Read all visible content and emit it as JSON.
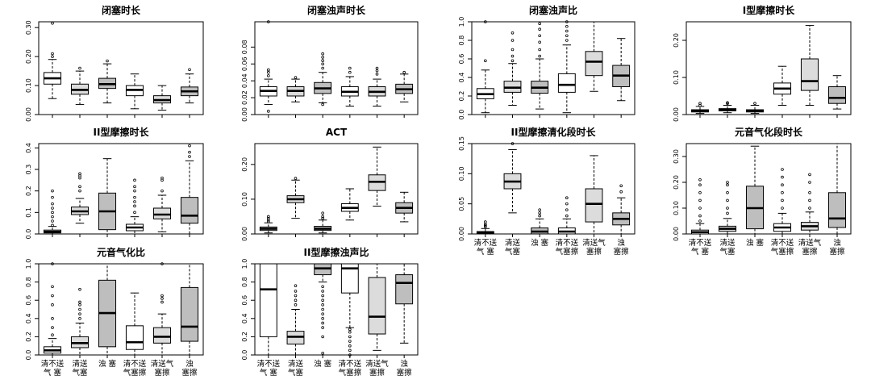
{
  "figure": {
    "category_labels": [
      [
        "清不送",
        "气 塞"
      ],
      [
        "清送",
        "气塞"
      ],
      [
        "浊 塞"
      ],
      [
        "清不送",
        "气塞擦"
      ],
      [
        "清送气",
        "塞擦"
      ],
      [
        "浊",
        "塞擦"
      ]
    ]
  },
  "colors": {
    "white_box": "#ffffff",
    "light_box": "#dcdcdc",
    "dark_box": "#bebebe",
    "axis": "#000000"
  },
  "chart_data": [
    {
      "type": "box",
      "title": "闭塞时长",
      "categories": [
        "清不送气塞",
        "清送气塞",
        "浊塞",
        "清不送气塞擦",
        "清送气塞擦",
        "浊塞擦"
      ],
      "ylim": [
        0,
        0.32
      ],
      "ticks": [
        "0.00",
        "0.10",
        "0.20",
        "0.30"
      ],
      "grid": false,
      "boxes": [
        {
          "whislo": 0.055,
          "q1": 0.105,
          "med": 0.125,
          "q3": 0.145,
          "whishi": 0.19,
          "outliers": [
            0.2,
            0.21,
            0.315
          ],
          "fill": "white"
        },
        {
          "whislo": 0.035,
          "q1": 0.07,
          "med": 0.085,
          "q3": 0.105,
          "whishi": 0.15,
          "outliers": [
            0.16
          ],
          "fill": "light"
        },
        {
          "whislo": 0.04,
          "q1": 0.09,
          "med": 0.105,
          "q3": 0.125,
          "whishi": 0.175,
          "outliers": [
            0.185
          ],
          "fill": "dark"
        },
        {
          "whislo": 0.02,
          "q1": 0.065,
          "med": 0.085,
          "q3": 0.1,
          "whishi": 0.14,
          "outliers": [],
          "fill": "white"
        },
        {
          "whislo": 0.015,
          "q1": 0.04,
          "med": 0.05,
          "q3": 0.065,
          "whishi": 0.1,
          "outliers": [],
          "fill": "light"
        },
        {
          "whislo": 0.04,
          "q1": 0.065,
          "med": 0.08,
          "q3": 0.095,
          "whishi": 0.14,
          "outliers": [
            0.155
          ],
          "fill": "dark"
        }
      ]
    },
    {
      "type": "box",
      "title": "闭塞浊声时长",
      "categories": [
        "清不送气塞",
        "清送气塞",
        "浊塞",
        "清不送气塞擦",
        "清送气塞擦",
        "浊塞擦"
      ],
      "ylim": [
        0,
        0.11
      ],
      "ticks": [
        "0.00",
        "0.02",
        "0.04",
        "0.06",
        "0.08"
      ],
      "grid": false,
      "boxes": [
        {
          "whislo": 0.012,
          "q1": 0.022,
          "med": 0.028,
          "q3": 0.033,
          "whishi": 0.042,
          "outliers": [
            0.004,
            0.046,
            0.05,
            0.053,
            0.11
          ],
          "fill": "white"
        },
        {
          "whislo": 0.015,
          "q1": 0.022,
          "med": 0.028,
          "q3": 0.033,
          "whishi": 0.042,
          "outliers": [
            0.044
          ],
          "fill": "light"
        },
        {
          "whislo": 0.014,
          "q1": 0.025,
          "med": 0.031,
          "q3": 0.038,
          "whishi": 0.05,
          "outliers": [
            0.012,
            0.055,
            0.06,
            0.064,
            0.068,
            0.072
          ],
          "fill": "dark"
        },
        {
          "whislo": 0.01,
          "q1": 0.022,
          "med": 0.027,
          "q3": 0.033,
          "whishi": 0.045,
          "outliers": [
            0.05,
            0.055
          ],
          "fill": "white"
        },
        {
          "whislo": 0.01,
          "q1": 0.022,
          "med": 0.027,
          "q3": 0.033,
          "whishi": 0.042,
          "outliers": [
            0.048,
            0.052,
            0.055
          ],
          "fill": "light"
        },
        {
          "whislo": 0.015,
          "q1": 0.025,
          "med": 0.03,
          "q3": 0.036,
          "whishi": 0.048,
          "outliers": [
            0.05
          ],
          "fill": "dark"
        }
      ]
    },
    {
      "type": "box",
      "title": "闭塞浊声比",
      "categories": [
        "清不送气塞",
        "清送气塞",
        "浊塞",
        "清不送气塞擦",
        "清送气塞擦",
        "浊塞擦"
      ],
      "ylim": [
        0,
        1.0
      ],
      "ticks": [
        "0.0",
        "0.2",
        "0.4",
        "0.6",
        "0.8",
        "1.0"
      ],
      "grid": false,
      "boxes": [
        {
          "whislo": 0.02,
          "q1": 0.17,
          "med": 0.22,
          "q3": 0.28,
          "whishi": 0.48,
          "outliers": [
            0.58,
            1.0
          ],
          "fill": "white"
        },
        {
          "whislo": 0.1,
          "q1": 0.24,
          "med": 0.29,
          "q3": 0.36,
          "whishi": 0.55,
          "outliers": [
            0.58,
            0.63,
            0.7,
            0.8,
            0.88
          ],
          "fill": "light"
        },
        {
          "whislo": 0.06,
          "q1": 0.23,
          "med": 0.29,
          "q3": 0.36,
          "whishi": 0.6,
          "outliers": [
            0.63,
            0.7,
            0.78,
            0.85,
            0.92,
            0.98
          ],
          "fill": "dark"
        },
        {
          "whislo": 0.02,
          "q1": 0.24,
          "med": 0.32,
          "q3": 0.44,
          "whishi": 0.75,
          "outliers": [
            0.8,
            0.85,
            0.9,
            0.95,
            1.0
          ],
          "fill": "white"
        },
        {
          "whislo": 0.25,
          "q1": 0.42,
          "med": 0.57,
          "q3": 0.68,
          "whishi": 1.0,
          "outliers": [],
          "fill": "light"
        },
        {
          "whislo": 0.15,
          "q1": 0.3,
          "med": 0.42,
          "q3": 0.53,
          "whishi": 0.82,
          "outliers": [],
          "fill": "dark"
        }
      ]
    },
    {
      "type": "box",
      "title": "I型摩擦时长",
      "categories": [
        "清不送气塞",
        "清送气塞",
        "浊塞",
        "清不送气塞擦",
        "清送气塞擦",
        "浊塞擦"
      ],
      "ylim": [
        0,
        0.25
      ],
      "ticks": [
        "0.00",
        "0.10",
        "0.20"
      ],
      "grid": false,
      "boxes": [
        {
          "whislo": 0.003,
          "q1": 0.007,
          "med": 0.01,
          "q3": 0.013,
          "whishi": 0.022,
          "outliers": [
            0.025,
            0.03
          ],
          "fill": "white"
        },
        {
          "whislo": 0.005,
          "q1": 0.01,
          "med": 0.013,
          "q3": 0.016,
          "whishi": 0.025,
          "outliers": [
            0.03,
            0.032
          ],
          "fill": "light"
        },
        {
          "whislo": 0.003,
          "q1": 0.007,
          "med": 0.01,
          "q3": 0.013,
          "whishi": 0.025,
          "outliers": [
            0.03
          ],
          "fill": "dark"
        },
        {
          "whislo": 0.025,
          "q1": 0.055,
          "med": 0.07,
          "q3": 0.085,
          "whishi": 0.13,
          "outliers": [],
          "fill": "white"
        },
        {
          "whislo": 0.025,
          "q1": 0.065,
          "med": 0.09,
          "q3": 0.15,
          "whishi": 0.24,
          "outliers": [],
          "fill": "light"
        },
        {
          "whislo": 0.015,
          "q1": 0.03,
          "med": 0.045,
          "q3": 0.075,
          "whishi": 0.105,
          "outliers": [],
          "fill": "dark"
        }
      ]
    },
    {
      "type": "box",
      "title": "II型摩擦时长",
      "categories": [
        "清不送气塞",
        "清送气塞",
        "浊塞",
        "清不送气塞擦",
        "清送气塞擦",
        "浊塞擦"
      ],
      "ylim": [
        0,
        0.42
      ],
      "ticks": [
        "0.0",
        "0.1",
        "0.2",
        "0.3",
        "0.4"
      ],
      "grid": false,
      "boxes": [
        {
          "whislo": 0.0,
          "q1": 0.005,
          "med": 0.01,
          "q3": 0.018,
          "whishi": 0.035,
          "outliers": [
            0.04,
            0.06,
            0.08,
            0.1,
            0.12,
            0.14,
            0.17,
            0.2
          ],
          "fill": "white"
        },
        {
          "whislo": 0.05,
          "q1": 0.09,
          "med": 0.105,
          "q3": 0.125,
          "whishi": 0.165,
          "outliers": [
            0.2,
            0.22,
            0.26,
            0.27,
            0.28
          ],
          "fill": "light"
        },
        {
          "whislo": 0.0,
          "q1": 0.02,
          "med": 0.105,
          "q3": 0.19,
          "whishi": 0.35,
          "outliers": [],
          "fill": "dark"
        },
        {
          "whislo": 0.0,
          "q1": 0.015,
          "med": 0.03,
          "q3": 0.045,
          "whishi": 0.08,
          "outliers": [
            0.1,
            0.13,
            0.15,
            0.17,
            0.2,
            0.22,
            0.25
          ],
          "fill": "white"
        },
        {
          "whislo": 0.01,
          "q1": 0.07,
          "med": 0.09,
          "q3": 0.12,
          "whishi": 0.18,
          "outliers": [
            0.2,
            0.25,
            0.26
          ],
          "fill": "light"
        },
        {
          "whislo": 0.0,
          "q1": 0.05,
          "med": 0.085,
          "q3": 0.17,
          "whishi": 0.34,
          "outliers": [
            0.36,
            0.38,
            0.41
          ],
          "fill": "dark"
        }
      ]
    },
    {
      "type": "box",
      "title": "ACT",
      "categories": [
        "清不送气塞",
        "清送气塞",
        "浊塞",
        "清不送气塞擦",
        "清送气塞擦",
        "浊塞擦"
      ],
      "ylim": [
        0,
        0.26
      ],
      "ticks": [
        "0.00",
        "0.10",
        "0.20"
      ],
      "grid": false,
      "boxes": [
        {
          "whislo": 0.003,
          "q1": 0.01,
          "med": 0.015,
          "q3": 0.02,
          "whishi": 0.032,
          "outliers": [
            0.035,
            0.04,
            0.045,
            0.05
          ],
          "fill": "white"
        },
        {
          "whislo": 0.045,
          "q1": 0.09,
          "med": 0.1,
          "q3": 0.11,
          "whishi": 0.155,
          "outliers": [
            0.16
          ],
          "fill": "light"
        },
        {
          "whislo": 0.003,
          "q1": 0.01,
          "med": 0.015,
          "q3": 0.022,
          "whishi": 0.04,
          "outliers": [
            0.045,
            0.05,
            0.06
          ],
          "fill": "dark"
        },
        {
          "whislo": 0.04,
          "q1": 0.065,
          "med": 0.075,
          "q3": 0.087,
          "whishi": 0.13,
          "outliers": [],
          "fill": "white"
        },
        {
          "whislo": 0.08,
          "q1": 0.125,
          "med": 0.15,
          "q3": 0.17,
          "whishi": 0.25,
          "outliers": [],
          "fill": "light"
        },
        {
          "whislo": 0.035,
          "q1": 0.06,
          "med": 0.075,
          "q3": 0.09,
          "whishi": 0.12,
          "outliers": [],
          "fill": "dark"
        }
      ]
    },
    {
      "type": "box",
      "title": "II型摩擦清化段时长",
      "categories": [
        "清不送气塞",
        "清送气塞",
        "浊塞",
        "清不送气塞擦",
        "清送气塞擦",
        "浊塞擦"
      ],
      "ylim": [
        0,
        0.15
      ],
      "ticks": [
        "0.00",
        "0.05",
        "0.10",
        "0.15"
      ],
      "grid": false,
      "boxes": [
        {
          "whislo": 0.0,
          "q1": 0.0,
          "med": 0.002,
          "q3": 0.004,
          "whishi": 0.009,
          "outliers": [
            0.012,
            0.014,
            0.016,
            0.02
          ],
          "fill": "white"
        },
        {
          "whislo": 0.035,
          "q1": 0.075,
          "med": 0.087,
          "q3": 0.1,
          "whishi": 0.14,
          "outliers": [
            0.15
          ],
          "fill": "light"
        },
        {
          "whislo": 0.0,
          "q1": 0.0,
          "med": 0.004,
          "q3": 0.01,
          "whishi": 0.025,
          "outliers": [
            0.03,
            0.035,
            0.04
          ],
          "fill": "dark"
        },
        {
          "whislo": 0.0,
          "q1": 0.0,
          "med": 0.004,
          "q3": 0.01,
          "whishi": 0.025,
          "outliers": [
            0.03,
            0.04,
            0.05,
            0.06
          ],
          "fill": "white"
        },
        {
          "whislo": 0.0,
          "q1": 0.02,
          "med": 0.05,
          "q3": 0.075,
          "whishi": 0.13,
          "outliers": [],
          "fill": "light"
        },
        {
          "whislo": 0.0,
          "q1": 0.015,
          "med": 0.025,
          "q3": 0.035,
          "whishi": 0.06,
          "outliers": [
            0.07,
            0.08
          ],
          "fill": "dark"
        }
      ]
    },
    {
      "type": "box",
      "title": "元音气化段时长",
      "categories": [
        "清不送气塞",
        "清送气塞",
        "浊塞",
        "清不送气塞擦",
        "清送气塞擦",
        "浊塞擦"
      ],
      "ylim": [
        0,
        0.35
      ],
      "ticks": [
        "0.00",
        "0.10",
        "0.20",
        "0.30"
      ],
      "grid": false,
      "boxes": [
        {
          "whislo": 0.0,
          "q1": 0.0,
          "med": 0.007,
          "q3": 0.015,
          "whishi": 0.04,
          "outliers": [
            0.05,
            0.07,
            0.1,
            0.13,
            0.16,
            0.19,
            0.21
          ],
          "fill": "white"
        },
        {
          "whislo": 0.0,
          "q1": 0.01,
          "med": 0.02,
          "q3": 0.03,
          "whishi": 0.06,
          "outliers": [
            0.08,
            0.1,
            0.13,
            0.16,
            0.19,
            0.2
          ],
          "fill": "light"
        },
        {
          "whislo": 0.0,
          "q1": 0.02,
          "med": 0.1,
          "q3": 0.185,
          "whishi": 0.34,
          "outliers": [],
          "fill": "dark"
        },
        {
          "whislo": 0.0,
          "q1": 0.01,
          "med": 0.025,
          "q3": 0.04,
          "whishi": 0.08,
          "outliers": [
            0.1,
            0.13,
            0.16,
            0.19,
            0.22,
            0.25
          ],
          "fill": "white"
        },
        {
          "whislo": 0.0,
          "q1": 0.015,
          "med": 0.03,
          "q3": 0.045,
          "whishi": 0.085,
          "outliers": [
            0.1,
            0.13,
            0.16,
            0.2,
            0.23
          ],
          "fill": "light"
        },
        {
          "whislo": 0.0,
          "q1": 0.025,
          "med": 0.06,
          "q3": 0.16,
          "whishi": 0.35,
          "outliers": [],
          "fill": "dark"
        }
      ]
    },
    {
      "type": "box",
      "title": "元音气化比",
      "categories": [
        "清不送气塞",
        "清送气塞",
        "浊塞",
        "清不送气塞擦",
        "清送气塞擦",
        "浊塞擦"
      ],
      "ylim": [
        0,
        1.0
      ],
      "ticks": [
        "0.0",
        "0.2",
        "0.4",
        "0.6",
        "0.8",
        "1.0"
      ],
      "grid": false,
      "boxes": [
        {
          "whislo": 0.0,
          "q1": 0.02,
          "med": 0.05,
          "q3": 0.09,
          "whishi": 0.18,
          "outliers": [
            0.22,
            0.3,
            0.4,
            0.55,
            0.65,
            0.75,
            1.0
          ],
          "fill": "white"
        },
        {
          "whislo": 0.0,
          "q1": 0.08,
          "med": 0.13,
          "q3": 0.2,
          "whishi": 0.35,
          "outliers": [
            0.4,
            0.45,
            0.5,
            0.55,
            0.58,
            0.72
          ],
          "fill": "light"
        },
        {
          "whislo": 0.0,
          "q1": 0.09,
          "med": 0.46,
          "q3": 0.82,
          "whishi": 1.0,
          "outliers": [],
          "fill": "dark"
        },
        {
          "whislo": 0.0,
          "q1": 0.06,
          "med": 0.14,
          "q3": 0.32,
          "whishi": 0.68,
          "outliers": [],
          "fill": "white"
        },
        {
          "whislo": 0.0,
          "q1": 0.13,
          "med": 0.2,
          "q3": 0.3,
          "whishi": 0.45,
          "outliers": [
            0.58,
            0.62,
            0.65,
            1.0
          ],
          "fill": "light"
        },
        {
          "whislo": 0.0,
          "q1": 0.15,
          "med": 0.31,
          "q3": 0.74,
          "whishi": 1.0,
          "outliers": [],
          "fill": "dark"
        }
      ]
    },
    {
      "type": "box",
      "title": "II型摩擦浊声比",
      "categories": [
        "清不送气塞",
        "清送气塞",
        "浊塞",
        "清不送气塞擦",
        "清送气塞擦",
        "浊塞擦"
      ],
      "ylim": [
        0,
        1.0
      ],
      "ticks": [
        "0.0",
        "0.2",
        "0.4",
        "0.6",
        "0.8",
        "1.0"
      ],
      "grid": false,
      "boxes": [
        {
          "whislo": 0.0,
          "q1": 0.2,
          "med": 0.72,
          "q3": 1.0,
          "whishi": 1.0,
          "outliers": [],
          "fill": "white"
        },
        {
          "whislo": 0.0,
          "q1": 0.12,
          "med": 0.2,
          "q3": 0.26,
          "whishi": 0.5,
          "outliers": [
            0.55,
            0.6,
            0.65,
            0.7,
            0.76
          ],
          "fill": "light"
        },
        {
          "whislo": 0.8,
          "q1": 0.88,
          "med": 0.95,
          "q3": 1.0,
          "whishi": 1.0,
          "outliers": [
            0.2,
            0.3,
            0.35,
            0.4,
            0.45,
            0.5,
            0.55,
            0.6,
            0.65,
            0.7,
            0.75,
            0.02
          ],
          "fill": "dark"
        },
        {
          "whislo": 0.3,
          "q1": 0.68,
          "med": 0.95,
          "q3": 1.0,
          "whishi": 1.0,
          "outliers": [
            0.0,
            0.05,
            0.1,
            0.15,
            0.2,
            0.25,
            0.28
          ],
          "fill": "white"
        },
        {
          "whislo": 0.05,
          "q1": 0.23,
          "med": 0.42,
          "q3": 0.85,
          "whishi": 1.0,
          "outliers": [],
          "fill": "light"
        },
        {
          "whislo": 0.13,
          "q1": 0.56,
          "med": 0.79,
          "q3": 0.88,
          "whishi": 1.0,
          "outliers": [],
          "fill": "dark"
        }
      ]
    }
  ]
}
